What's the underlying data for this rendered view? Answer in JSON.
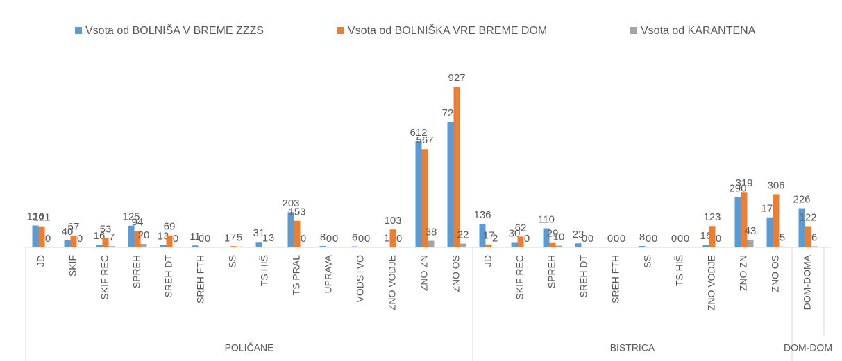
{
  "chart_data": {
    "type": "bar",
    "category_groups": [
      {
        "name": "POLIČANE",
        "categories": [
          "JD",
          "SKIF",
          "SKIF REC",
          "SPREH",
          "SREH DT",
          "SREH FTH",
          "SS",
          "TS HIŠ",
          "TS PRAL",
          "UPRAVA",
          "VODSTVO",
          "ZNO VODJE",
          "ZNO ZN",
          "ZNO OS"
        ]
      },
      {
        "name": "BISTRICA",
        "categories": [
          "JD",
          "SKIF REC",
          "SPREH",
          "SREH DT",
          "SREH FTH",
          "SS",
          "TS HIŠ",
          "ZNO VODJE",
          "ZNO ZN",
          "ZNO OS"
        ]
      },
      {
        "name": "DOM-DOM",
        "categories": [
          "DOM-DOMA"
        ]
      }
    ],
    "series": [
      {
        "name": "Vsota od BOLNIŠA V BREME ZZZS",
        "color": "#5b9bd5",
        "values": [
          126,
          40,
          16,
          125,
          13,
          11,
          1,
          31,
          203,
          8,
          6,
          1,
          612,
          724,
          136,
          30,
          110,
          23,
          0,
          8,
          0,
          16,
          290,
          173,
          226
        ]
      },
      {
        "name": "Vsota od BOLNIŠKA VRE BREME DOM",
        "color": "#ed7d31",
        "values": [
          121,
          67,
          53,
          94,
          69,
          0,
          7,
          1,
          153,
          0,
          0,
          103,
          567,
          927,
          17,
          62,
          29,
          0,
          0,
          0,
          0,
          123,
          319,
          306,
          122
        ]
      },
      {
        "name": "Vsota od KARANTENA",
        "color": "#a5a5a5",
        "values": [
          0,
          0,
          7,
          20,
          0,
          0,
          5,
          3,
          0,
          0,
          0,
          0,
          38,
          22,
          2,
          0,
          10,
          0,
          0,
          0,
          0,
          0,
          43,
          5,
          6
        ]
      }
    ],
    "ylim": [
      0,
      1000
    ],
    "legend": "top"
  }
}
